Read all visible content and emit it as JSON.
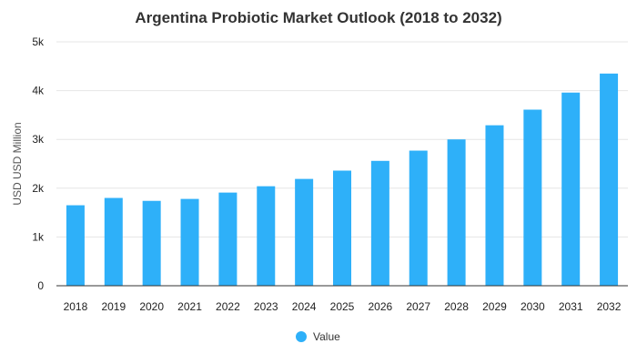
{
  "chart_data": {
    "type": "bar",
    "title": "Argentina Probiotic Market Outlook (2018 to 2032)",
    "xlabel": "",
    "ylabel": "USD USD Million",
    "categories": [
      "2018",
      "2019",
      "2020",
      "2021",
      "2022",
      "2023",
      "2024",
      "2025",
      "2026",
      "2027",
      "2028",
      "2029",
      "2030",
      "2031",
      "2032"
    ],
    "series": [
      {
        "name": "Value",
        "values": [
          1650,
          1800,
          1740,
          1780,
          1910,
          2040,
          2190,
          2360,
          2560,
          2770,
          3000,
          3290,
          3610,
          3960,
          4350
        ]
      }
    ],
    "ylim": [
      0,
      5000
    ],
    "y_ticks": [
      {
        "value": 0,
        "label": "0"
      },
      {
        "value": 1000,
        "label": "1k"
      },
      {
        "value": 2000,
        "label": "2k"
      },
      {
        "value": 3000,
        "label": "3k"
      },
      {
        "value": 4000,
        "label": "4k"
      },
      {
        "value": 5000,
        "label": "5k"
      }
    ],
    "grid": true,
    "legend": "bottom-center",
    "colors": {
      "bar": "#2eb0f9",
      "grid": "#e6e6e6",
      "axis": "#333333"
    }
  }
}
